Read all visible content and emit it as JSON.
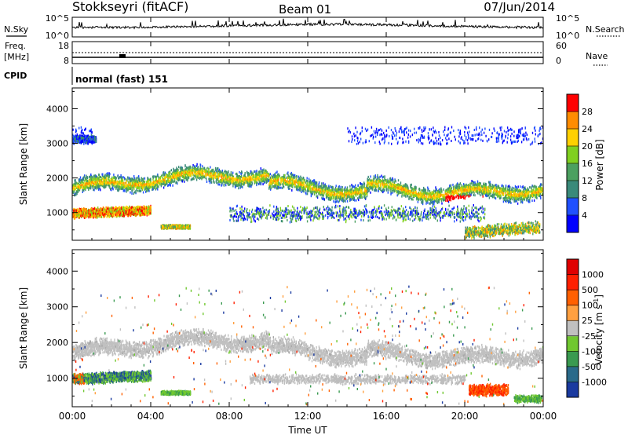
{
  "header": {
    "station": "Stokkseyri (fitACF)",
    "beam": "Beam 01",
    "date": "07/Jun/2014"
  },
  "top_panels": {
    "nsky": {
      "label": "N.Sky",
      "ticks": [
        "10^5",
        "10^0"
      ]
    },
    "nsearch": {
      "label": "N.Search",
      "ticks": [
        "10^5",
        "10^0"
      ]
    },
    "freq": {
      "label_line1": "Freq.",
      "label_line2": "[MHz]",
      "ticks": [
        "18",
        "8"
      ]
    },
    "nave": {
      "label": "Nave",
      "ticks": [
        "60",
        "0"
      ]
    },
    "cpid": {
      "label": "CPID",
      "value": "normal (fast) 151"
    }
  },
  "chart_data": [
    {
      "type": "heatmap",
      "quantity": "power",
      "xlabel": "",
      "ylabel": "Slant Range [km]",
      "xlim": [
        0,
        24
      ],
      "ylim": [
        200,
        4600
      ],
      "yticks": [
        "1000",
        "2000",
        "3000",
        "4000"
      ],
      "colorbar": {
        "label": "Power [dB]",
        "ticks": [
          "28",
          "24",
          "20",
          "16",
          "12",
          "8",
          "4"
        ],
        "colors": [
          "#0000ff",
          "#2050ff",
          "#3a8a7a",
          "#4ca060",
          "#80d020",
          "#ffd000",
          "#ff8c00",
          "#ff0000"
        ]
      }
    },
    {
      "type": "heatmap",
      "quantity": "velocity",
      "xlabel": "Time UT",
      "ylabel": "Slant Range [km]",
      "xlim": [
        0,
        24
      ],
      "ylim": [
        200,
        4600
      ],
      "yticks": [
        "1000",
        "2000",
        "3000",
        "4000"
      ],
      "xticks": [
        "00:00",
        "04:00",
        "08:00",
        "12:00",
        "16:00",
        "20:00",
        "00:00"
      ],
      "colorbar": {
        "label_prefix": "Velocity [m s",
        "label_suffix": "-1",
        "label_close": "]",
        "ticks": [
          "1000",
          "500",
          "100",
          "25",
          "-25",
          "-100",
          "-500",
          "-1000"
        ],
        "colors": [
          "#1a3aa0",
          "#2a6a8a",
          "#3a9a50",
          "#70c830",
          "#c0c0c0",
          "#ffa040",
          "#ff6000",
          "#ff2000",
          "#e00000"
        ]
      }
    }
  ]
}
